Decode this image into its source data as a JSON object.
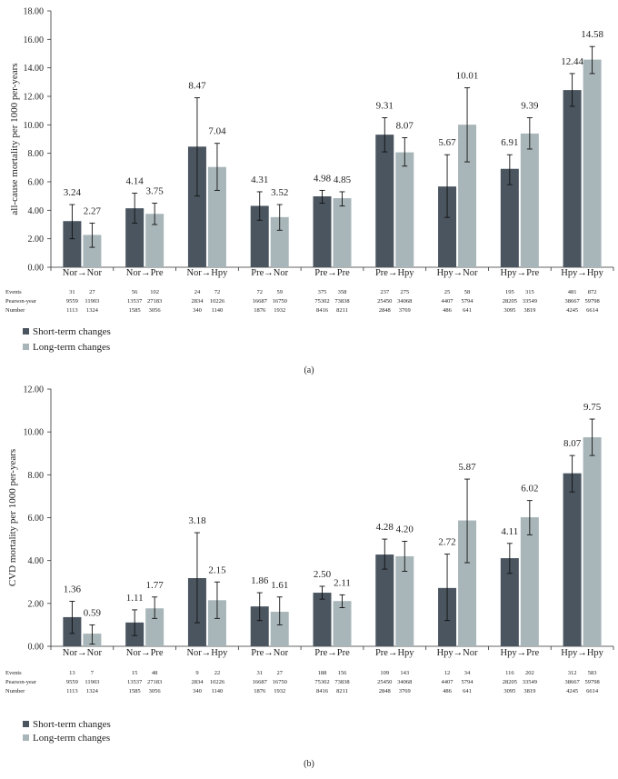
{
  "chart_data": [
    {
      "type": "bar",
      "panel_label": "(a)",
      "ylabel": "all-cause mortality per 1000 per-years",
      "xlabel": "",
      "ylim": [
        0,
        18
      ],
      "yticks": [
        "0.00",
        "2.00",
        "4.00",
        "6.00",
        "8.00",
        "10.00",
        "12.00",
        "14.00",
        "16.00",
        "18.00"
      ],
      "categories": [
        "Nor→Nor",
        "Nor→Pre",
        "Nor→Hpy",
        "Pre→Nor",
        "Pre→Pre",
        "Pre→Hpy",
        "Hpy→Nor",
        "Hpy→Pre",
        "Hpy→Hpy"
      ],
      "series": [
        {
          "name": "Short-term changes",
          "color": "#4a5560",
          "values": [
            3.24,
            4.14,
            8.47,
            4.31,
            4.98,
            9.31,
            5.67,
            6.91,
            12.44
          ],
          "labels": [
            "3.24",
            "4.14",
            "8.47",
            "4.31",
            "4.98",
            "9.31",
            "5.67",
            "6.91",
            "12.44"
          ],
          "ci": [
            [
              2.0,
              4.4
            ],
            [
              3.1,
              5.2
            ],
            [
              5.0,
              11.9
            ],
            [
              3.3,
              5.3
            ],
            [
              4.5,
              5.4
            ],
            [
              8.1,
              10.5
            ],
            [
              3.5,
              7.9
            ],
            [
              5.8,
              7.9
            ],
            [
              11.3,
              13.6
            ]
          ]
        },
        {
          "name": "Long-term changes",
          "color": "#a9b6b9",
          "values": [
            2.27,
            3.75,
            7.04,
            3.52,
            4.85,
            8.07,
            10.01,
            9.39,
            14.58
          ],
          "labels": [
            "2.27",
            "3.75",
            "7.04",
            "3.52",
            "4.85",
            "8.07",
            "10.01",
            "9.39",
            "14.58"
          ],
          "ci": [
            [
              1.4,
              3.1
            ],
            [
              3.0,
              4.5
            ],
            [
              5.4,
              8.7
            ],
            [
              2.6,
              4.4
            ],
            [
              4.3,
              5.3
            ],
            [
              7.1,
              9.1
            ],
            [
              7.4,
              12.6
            ],
            [
              8.3,
              10.5
            ],
            [
              13.6,
              15.5
            ]
          ]
        }
      ],
      "table": {
        "row_labels": [
          "Events",
          "Pearson-year",
          "Number"
        ],
        "rows": [
          [
            "31",
            "27",
            "56",
            "102",
            "24",
            "72",
            "72",
            "59",
            "375",
            "358",
            "237",
            "275",
            "25",
            "58",
            "195",
            "315",
            "481",
            "872"
          ],
          [
            "9559",
            "11903",
            "13537",
            "27183",
            "2834",
            "10226",
            "16687",
            "16750",
            "75302",
            "73838",
            "25450",
            "34068",
            "4407",
            "5794",
            "28205",
            "33549",
            "38667",
            "59798"
          ],
          [
            "1113",
            "1324",
            "1585",
            "3056",
            "340",
            "1140",
            "1876",
            "1932",
            "8416",
            "8211",
            "2848",
            "3769",
            "486",
            "641",
            "3095",
            "3819",
            "4245",
            "6614"
          ]
        ]
      }
    },
    {
      "type": "bar",
      "panel_label": "(b)",
      "ylabel": "CVD mortality per 1000 per-years",
      "xlabel": "",
      "ylim": [
        0,
        12
      ],
      "yticks": [
        "0.00",
        "2.00",
        "4.00",
        "6.00",
        "8.00",
        "10.00",
        "12.00"
      ],
      "categories": [
        "Nor→Nor",
        "Nor→Pre",
        "Nor→Hpy",
        "Pre→Nor",
        "Pre→Pre",
        "Pre→Hpy",
        "Hpy→Nor",
        "Hpy→Pre",
        "Hpy→Hpy"
      ],
      "series": [
        {
          "name": "Short-term changes",
          "color": "#4a5560",
          "values": [
            1.36,
            1.11,
            3.18,
            1.86,
            2.5,
            4.28,
            2.72,
            4.11,
            8.07
          ],
          "labels": [
            "1.36",
            "1.11",
            "3.18",
            "1.86",
            "2.50",
            "4.28",
            "2.72",
            "4.11",
            "8.07"
          ],
          "ci": [
            [
              0.6,
              2.1
            ],
            [
              0.5,
              1.7
            ],
            [
              1.1,
              5.3
            ],
            [
              1.2,
              2.5
            ],
            [
              2.2,
              2.8
            ],
            [
              3.6,
              5.0
            ],
            [
              1.2,
              4.3
            ],
            [
              3.4,
              4.8
            ],
            [
              7.2,
              8.9
            ]
          ]
        },
        {
          "name": "Long-term changes",
          "color": "#a9b6b9",
          "values": [
            0.59,
            1.77,
            2.15,
            1.61,
            2.11,
            4.2,
            5.87,
            6.02,
            9.75
          ],
          "labels": [
            "0.59",
            "1.77",
            "2.15",
            "1.61",
            "2.11",
            "4.20",
            "5.87",
            "6.02",
            "9.75"
          ],
          "ci": [
            [
              0.1,
              1.0
            ],
            [
              1.3,
              2.3
            ],
            [
              1.3,
              3.0
            ],
            [
              1.0,
              2.3
            ],
            [
              1.8,
              2.4
            ],
            [
              3.5,
              4.9
            ],
            [
              3.9,
              7.8
            ],
            [
              5.2,
              6.8
            ],
            [
              8.9,
              10.6
            ]
          ]
        }
      ],
      "table": {
        "row_labels": [
          "Events",
          "Pearson-year",
          "Number"
        ],
        "rows": [
          [
            "13",
            "7",
            "15",
            "48",
            "9",
            "22",
            "31",
            "27",
            "188",
            "156",
            "109",
            "143",
            "12",
            "34",
            "116",
            "202",
            "312",
            "583"
          ],
          [
            "9559",
            "11903",
            "13537",
            "27183",
            "2834",
            "10226",
            "16687",
            "16750",
            "75302",
            "73838",
            "25450",
            "34068",
            "4407",
            "5794",
            "28205",
            "33549",
            "38667",
            "59798"
          ],
          [
            "1113",
            "1324",
            "1585",
            "3056",
            "340",
            "1140",
            "1876",
            "1932",
            "8416",
            "8211",
            "2848",
            "3769",
            "486",
            "641",
            "3095",
            "3819",
            "4245",
            "6614"
          ]
        ]
      }
    }
  ]
}
